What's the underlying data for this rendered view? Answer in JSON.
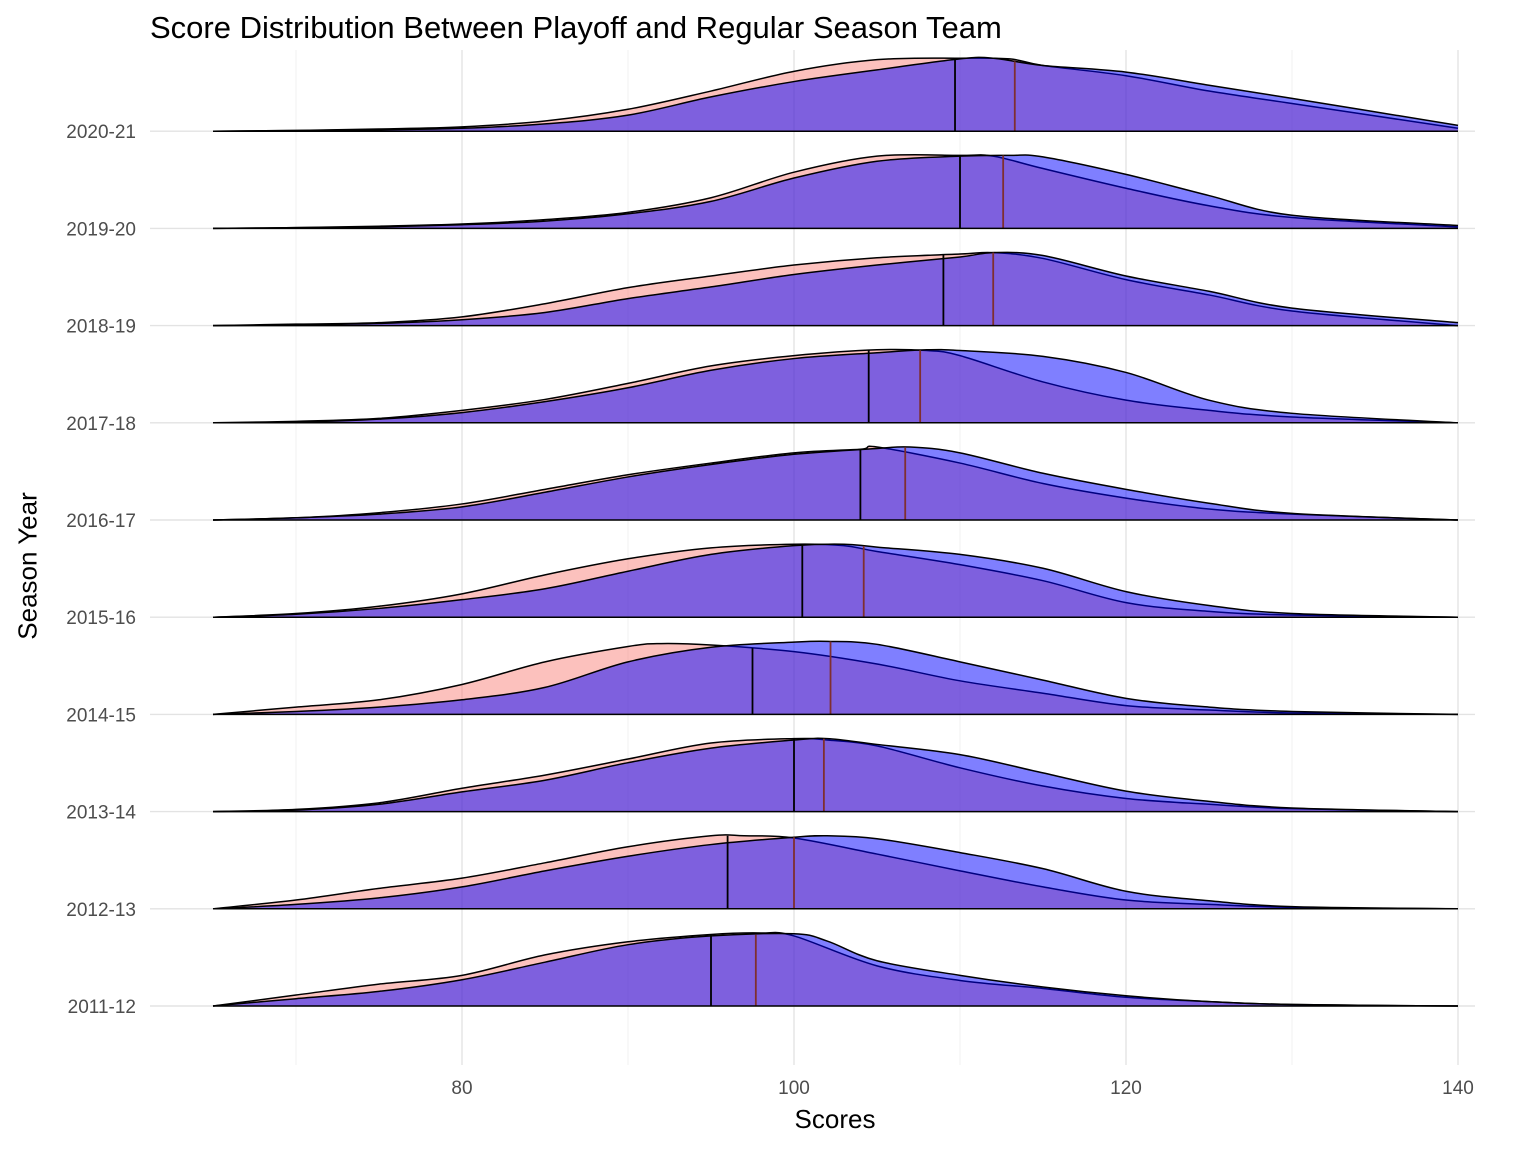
{
  "chart_data": {
    "type": "ridgeline",
    "title": "Score Distribution Between Playoff and Regular Season Team",
    "xlabel": "Scores",
    "ylabel": "Season Year",
    "xlim": [
      65,
      140
    ],
    "x_ticks": [
      80,
      100,
      120,
      140
    ],
    "grid": true,
    "colors": {
      "regular": "#F8766D",
      "playoff": "#0000FF",
      "regular_median_line": "#7F2F2F",
      "playoff_median_line": "#000000"
    },
    "categories": [
      "2011-12",
      "2012-13",
      "2013-14",
      "2014-15",
      "2015-16",
      "2016-17",
      "2017-18",
      "2018-19",
      "2019-20",
      "2020-21"
    ],
    "series": [
      {
        "key": "regular",
        "fill": "#F8766D",
        "opacity": 0.45,
        "medians": [
          95,
          96,
          100,
          97.5,
          100.5,
          104,
          104.5,
          109,
          110,
          109.7
        ],
        "ridges": [
          {
            "x": [
              65,
              70,
              75,
              80,
              85,
              90,
              95,
              98,
              100,
              105,
              110,
              115,
              120,
              125,
              130,
              140
            ],
            "y": [
              0,
              0.15,
              0.3,
              0.42,
              0.7,
              0.88,
              0.98,
              1,
              0.96,
              0.55,
              0.35,
              0.24,
              0.12,
              0.06,
              0.02,
              0
            ]
          },
          {
            "x": [
              65,
              70,
              75,
              80,
              85,
              90,
              95,
              97,
              100,
              105,
              110,
              115,
              120,
              125,
              130,
              140
            ],
            "y": [
              0,
              0.12,
              0.28,
              0.42,
              0.63,
              0.85,
              1,
              1,
              0.97,
              0.75,
              0.52,
              0.3,
              0.12,
              0.06,
              0.02,
              0
            ]
          },
          {
            "x": [
              65,
              70,
              75,
              80,
              85,
              90,
              95,
              100,
              102,
              105,
              110,
              115,
              120,
              125,
              130,
              140
            ],
            "y": [
              0,
              0.03,
              0.12,
              0.32,
              0.5,
              0.72,
              0.94,
              1,
              0.98,
              0.9,
              0.6,
              0.35,
              0.18,
              0.1,
              0.04,
              0
            ]
          },
          {
            "x": [
              65,
              70,
              75,
              80,
              85,
              90,
              92,
              95,
              100,
              105,
              110,
              115,
              120,
              125,
              130,
              140
            ],
            "y": [
              0,
              0.1,
              0.2,
              0.41,
              0.72,
              0.93,
              0.97,
              0.95,
              0.86,
              0.69,
              0.46,
              0.29,
              0.12,
              0.06,
              0.02,
              0
            ]
          },
          {
            "x": [
              65,
              70,
              75,
              80,
              85,
              90,
              95,
              100,
              103,
              105,
              110,
              115,
              120,
              125,
              130,
              140
            ],
            "y": [
              0,
              0.05,
              0.15,
              0.32,
              0.58,
              0.8,
              0.95,
              1,
              0.98,
              0.9,
              0.72,
              0.5,
              0.2,
              0.08,
              0.03,
              0
            ]
          },
          {
            "x": [
              65,
              70,
              75,
              80,
              85,
              90,
              95,
              100,
              104,
              105,
              110,
              115,
              120,
              125,
              130,
              140
            ],
            "y": [
              0,
              0.03,
              0.1,
              0.22,
              0.42,
              0.62,
              0.78,
              0.92,
              0.97,
              1,
              0.78,
              0.5,
              0.3,
              0.15,
              0.08,
              0
            ]
          },
          {
            "x": [
              65,
              70,
              75,
              80,
              85,
              90,
              95,
              100,
              105,
              108,
              110,
              115,
              120,
              125,
              130,
              140
            ],
            "y": [
              0,
              0.02,
              0.06,
              0.17,
              0.32,
              0.54,
              0.78,
              0.92,
              1,
              0.99,
              0.92,
              0.56,
              0.31,
              0.17,
              0.08,
              0
            ]
          },
          {
            "x": [
              65,
              70,
              75,
              80,
              85,
              90,
              95,
              100,
              105,
              110,
              112,
              115,
              120,
              125,
              130,
              140
            ],
            "y": [
              0,
              0.02,
              0.04,
              0.12,
              0.3,
              0.52,
              0.68,
              0.83,
              0.93,
              0.98,
              1,
              0.92,
              0.63,
              0.42,
              0.2,
              0
            ]
          },
          {
            "x": [
              65,
              70,
              75,
              80,
              85,
              90,
              95,
              100,
              105,
              110,
              112,
              115,
              120,
              125,
              130,
              140
            ],
            "y": [
              0,
              0.01,
              0.03,
              0.06,
              0.12,
              0.22,
              0.42,
              0.77,
              0.99,
              1,
              0.99,
              0.82,
              0.55,
              0.31,
              0.15,
              0.02
            ]
          },
          {
            "x": [
              65,
              70,
              75,
              80,
              85,
              90,
              95,
              100,
              105,
              110,
              113,
              115,
              120,
              125,
              130,
              140
            ],
            "y": [
              0,
              0.01,
              0.03,
              0.06,
              0.14,
              0.3,
              0.55,
              0.82,
              0.98,
              1,
              0.99,
              0.9,
              0.76,
              0.55,
              0.38,
              0.04
            ]
          }
        ]
      },
      {
        "key": "playoff",
        "fill": "#0000FF",
        "opacity": 0.5,
        "medians": [
          97.7,
          100,
          101.8,
          102.2,
          104.2,
          106.7,
          107.6,
          112,
          112.6,
          113.3
        ],
        "ridges": [
          {
            "x": [
              65,
              70,
              75,
              80,
              85,
              90,
              95,
              100,
              102,
              105,
              110,
              115,
              120,
              125,
              130,
              140
            ],
            "y": [
              0,
              0.1,
              0.2,
              0.36,
              0.6,
              0.84,
              0.96,
              0.99,
              0.89,
              0.62,
              0.42,
              0.26,
              0.14,
              0.06,
              0.02,
              0
            ]
          },
          {
            "x": [
              65,
              70,
              75,
              80,
              85,
              90,
              95,
              100,
              102,
              105,
              110,
              115,
              120,
              125,
              130,
              140
            ],
            "y": [
              0,
              0.06,
              0.15,
              0.3,
              0.52,
              0.72,
              0.88,
              0.98,
              1,
              0.96,
              0.77,
              0.55,
              0.24,
              0.11,
              0.03,
              0
            ]
          },
          {
            "x": [
              65,
              70,
              75,
              80,
              85,
              90,
              95,
              100,
              102,
              105,
              110,
              115,
              120,
              125,
              130,
              140
            ],
            "y": [
              0,
              0.02,
              0.1,
              0.27,
              0.43,
              0.67,
              0.87,
              0.98,
              1,
              0.92,
              0.78,
              0.53,
              0.28,
              0.14,
              0.05,
              0
            ]
          },
          {
            "x": [
              65,
              70,
              75,
              80,
              85,
              90,
              95,
              100,
              102,
              105,
              110,
              115,
              120,
              125,
              130,
              140
            ],
            "y": [
              0,
              0.04,
              0.1,
              0.2,
              0.37,
              0.72,
              0.92,
              0.99,
              1,
              0.96,
              0.72,
              0.47,
              0.22,
              0.1,
              0.04,
              0
            ]
          },
          {
            "x": [
              65,
              70,
              75,
              80,
              85,
              90,
              95,
              100,
              103,
              105,
              110,
              115,
              120,
              125,
              130,
              140
            ],
            "y": [
              0,
              0.04,
              0.12,
              0.24,
              0.39,
              0.63,
              0.86,
              0.98,
              1,
              0.96,
              0.86,
              0.67,
              0.35,
              0.16,
              0.05,
              0
            ]
          },
          {
            "x": [
              65,
              70,
              75,
              80,
              85,
              90,
              95,
              100,
              105,
              107,
              110,
              115,
              120,
              125,
              130,
              140
            ],
            "y": [
              0,
              0.03,
              0.08,
              0.18,
              0.38,
              0.59,
              0.76,
              0.9,
              0.98,
              1,
              0.92,
              0.64,
              0.42,
              0.23,
              0.09,
              0
            ]
          },
          {
            "x": [
              65,
              70,
              75,
              80,
              85,
              90,
              95,
              100,
              105,
              108,
              110,
              115,
              120,
              125,
              130,
              140
            ],
            "y": [
              0,
              0.01,
              0.05,
              0.14,
              0.29,
              0.48,
              0.72,
              0.88,
              0.96,
              1,
              0.99,
              0.91,
              0.69,
              0.31,
              0.13,
              0
            ]
          },
          {
            "x": [
              65,
              70,
              75,
              80,
              85,
              90,
              95,
              100,
              105,
              110,
              112,
              115,
              120,
              125,
              130,
              140
            ],
            "y": [
              0,
              0.01,
              0.03,
              0.08,
              0.18,
              0.37,
              0.53,
              0.7,
              0.83,
              0.94,
              1,
              0.96,
              0.68,
              0.47,
              0.24,
              0.04
            ]
          },
          {
            "x": [
              65,
              70,
              75,
              80,
              85,
              90,
              95,
              100,
              105,
              110,
              113,
              115,
              120,
              125,
              130,
              140
            ],
            "y": [
              0,
              0.01,
              0.02,
              0.05,
              0.1,
              0.2,
              0.37,
              0.69,
              0.92,
              0.99,
              1,
              0.98,
              0.74,
              0.45,
              0.18,
              0.04
            ]
          },
          {
            "x": [
              65,
              70,
              75,
              80,
              85,
              90,
              95,
              100,
              105,
              110,
              112,
              115,
              120,
              125,
              130,
              140
            ],
            "y": [
              0,
              0.01,
              0.02,
              0.04,
              0.1,
              0.22,
              0.47,
              0.68,
              0.84,
              0.99,
              1,
              0.9,
              0.81,
              0.63,
              0.45,
              0.08
            ]
          }
        ]
      }
    ]
  }
}
